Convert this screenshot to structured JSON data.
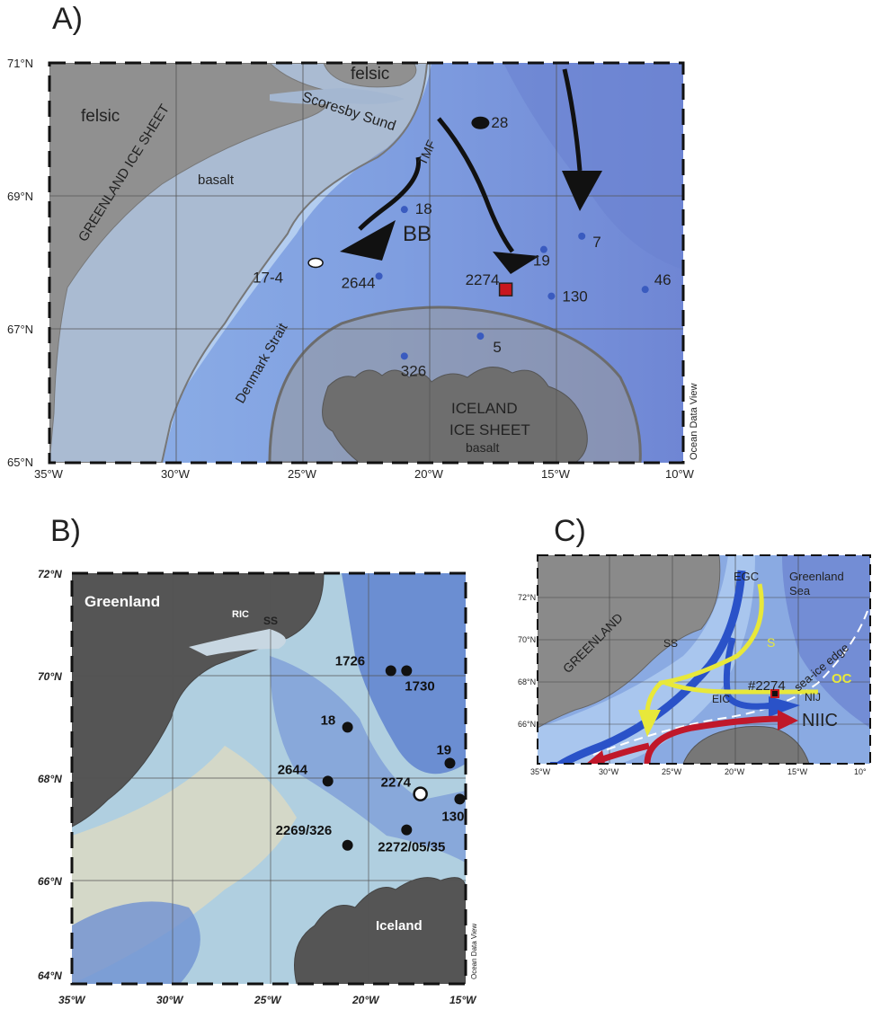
{
  "panels": {
    "a": {
      "letter": "A)",
      "lat_ticks": [
        "71°N",
        "69°N",
        "67°N",
        "65°N"
      ],
      "lon_ticks": [
        "35°W",
        "30°W",
        "25°W",
        "20°W",
        "15°W",
        "10°W"
      ],
      "labels": {
        "felsic_w": "felsic",
        "felsic_n": "felsic",
        "basalt": "basalt",
        "greenland_ice": "GREENLAND ICE SHEET",
        "scoresby": "Scoresby Sund",
        "tmf": "TMF",
        "bb": "BB",
        "denmark": "Denmark Strait",
        "iceland_ice_1": "ICELAND",
        "iceland_ice_2": "ICE SHEET",
        "iceland_basalt": "basalt",
        "credit": "Ocean Data View"
      },
      "stations": [
        {
          "id": "28",
          "lon": -18.0,
          "lat": 70.1
        },
        {
          "id": "18",
          "lon": -21.0,
          "lat": 68.8
        },
        {
          "id": "7",
          "lon": -14.0,
          "lat": 68.4
        },
        {
          "id": "19",
          "lon": -15.5,
          "lat": 68.2
        },
        {
          "id": "17-4",
          "lon": -24.5,
          "lat": 68.0
        },
        {
          "id": "2644",
          "lon": -22.0,
          "lat": 67.8
        },
        {
          "id": "2274",
          "lon": -17.0,
          "lat": 67.6
        },
        {
          "id": "130",
          "lon": -15.2,
          "lat": 67.5
        },
        {
          "id": "46",
          "lon": -11.5,
          "lat": 67.6
        },
        {
          "id": "5",
          "lon": -18.0,
          "lat": 66.9
        },
        {
          "id": "326",
          "lon": -21.0,
          "lat": 66.6
        }
      ]
    },
    "b": {
      "letter": "B)",
      "lat_ticks": [
        "72°N",
        "70°N",
        "68°N",
        "66°N",
        "64°N"
      ],
      "lon_ticks": [
        "35°W",
        "30°W",
        "25°W",
        "20°W",
        "15°W"
      ],
      "labels": {
        "greenland": "Greenland",
        "ric": "RIC",
        "ss": "SS",
        "iceland": "Iceland",
        "credit": "Ocean Data View"
      },
      "stations": [
        {
          "id": "1726",
          "lon": -18.8,
          "lat": 70.1
        },
        {
          "id": "1730",
          "lon": -18.0,
          "lat": 70.1
        },
        {
          "id": "18",
          "lon": -21.0,
          "lat": 69.0
        },
        {
          "id": "19",
          "lon": -15.8,
          "lat": 68.3
        },
        {
          "id": "2644",
          "lon": -22.0,
          "lat": 67.95
        },
        {
          "id": "2274",
          "lon": -17.3,
          "lat": 67.7
        },
        {
          "id": "130",
          "lon": -15.3,
          "lat": 67.6
        },
        {
          "id": "2272/05/35",
          "lon": -18.0,
          "lat": 67.0
        },
        {
          "id": "2269/326",
          "lon": -21.0,
          "lat": 66.7
        }
      ]
    },
    "c": {
      "letter": "C)",
      "lat_ticks": [
        "72°N",
        "70°N",
        "68°N",
        "66°N"
      ],
      "lon_ticks": [
        "35°W",
        "30°W",
        "25°W",
        "20°W",
        "15°W",
        "10°"
      ],
      "labels": {
        "greenland": "GREENLAND",
        "egc": "EGC",
        "greenland_sea_1": "Greenland",
        "greenland_sea_2": "Sea",
        "ss": "SS",
        "s": "S",
        "sea_ice_edge": "sea-ice edge",
        "oc": "OC",
        "eic": "EIC",
        "station": "#2274",
        "nij": "NIJ",
        "niic": "NIIC"
      }
    }
  },
  "colors": {
    "land": "#8a8a8a",
    "land_dark": "#555555",
    "ocean_deep": "#6f8fd6",
    "ocean_mid": "#8fb0e6",
    "ocean_shelf": "#b9d2f0",
    "ice_sheet": "#a8a8a8",
    "red_marker": "#c8171e",
    "blue_dot": "#3a5bbf",
    "egc_blue": "#2a52c8",
    "yellow": "#e8e83a",
    "red_current": "#c0182a"
  }
}
